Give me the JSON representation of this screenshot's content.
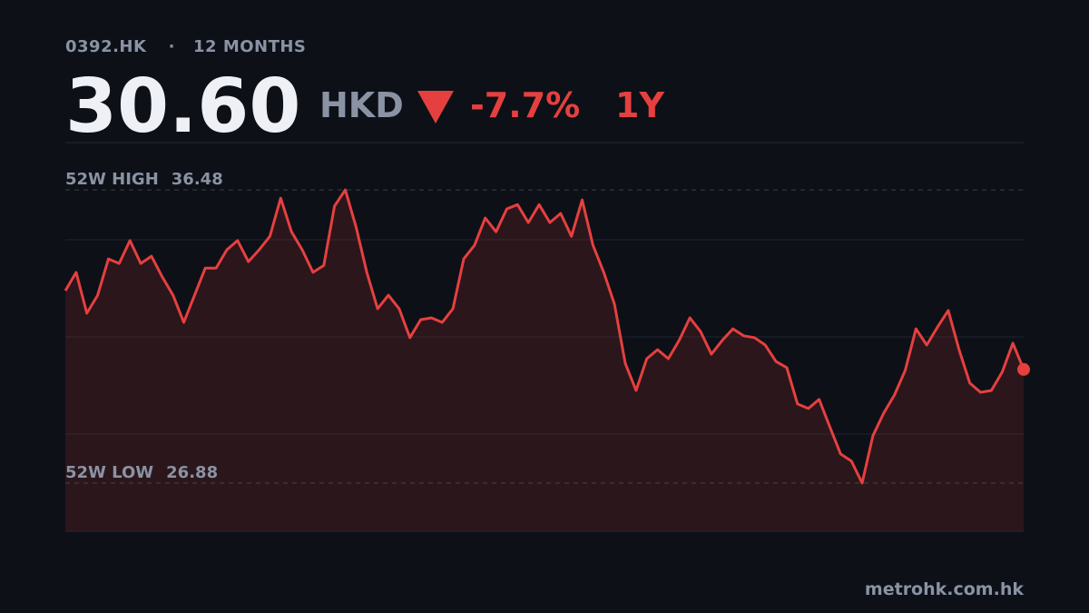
{
  "header": {
    "ticker": "0392.HK",
    "separator": "·",
    "period": "12 MONTHS",
    "price": "30.60",
    "currency": "HKD",
    "change": "-7.7%",
    "range": "1Y"
  },
  "chart_data": {
    "type": "line",
    "color": "#e5403f",
    "values": [
      33.18,
      33.78,
      32.44,
      33.03,
      34.22,
      34.07,
      34.82,
      34.07,
      34.31,
      33.63,
      33.03,
      32.14,
      33.03,
      33.92,
      33.92,
      34.52,
      34.82,
      34.13,
      34.52,
      34.96,
      36.21,
      35.11,
      34.52,
      33.78,
      34.01,
      35.95,
      36.48,
      35.26,
      33.78,
      32.59,
      33.03,
      32.59,
      31.64,
      32.23,
      32.29,
      32.14,
      32.59,
      34.22,
      34.67,
      35.56,
      35.11,
      35.86,
      36.0,
      35.41,
      36.0,
      35.41,
      35.71,
      34.96,
      36.15,
      34.67,
      33.78,
      32.74,
      30.8,
      29.91,
      30.95,
      31.25,
      30.95,
      31.55,
      32.29,
      31.84,
      31.1,
      31.55,
      31.93,
      31.7,
      31.64,
      31.4,
      30.86,
      30.66,
      29.47,
      29.32,
      29.62,
      28.72,
      27.83,
      27.6,
      26.88,
      28.43,
      29.17,
      29.76,
      30.57,
      31.93,
      31.4,
      31.99,
      32.53,
      31.25,
      30.15,
      29.85,
      29.91,
      30.51,
      31.46,
      30.6
    ],
    "ylim": [
      25.3,
      38.03
    ],
    "high": {
      "label": "52W HIGH",
      "value": 36.48
    },
    "low": {
      "label": "52W LOW",
      "value": 26.88
    }
  },
  "footer": {
    "source": "metrohk.com.hk"
  }
}
